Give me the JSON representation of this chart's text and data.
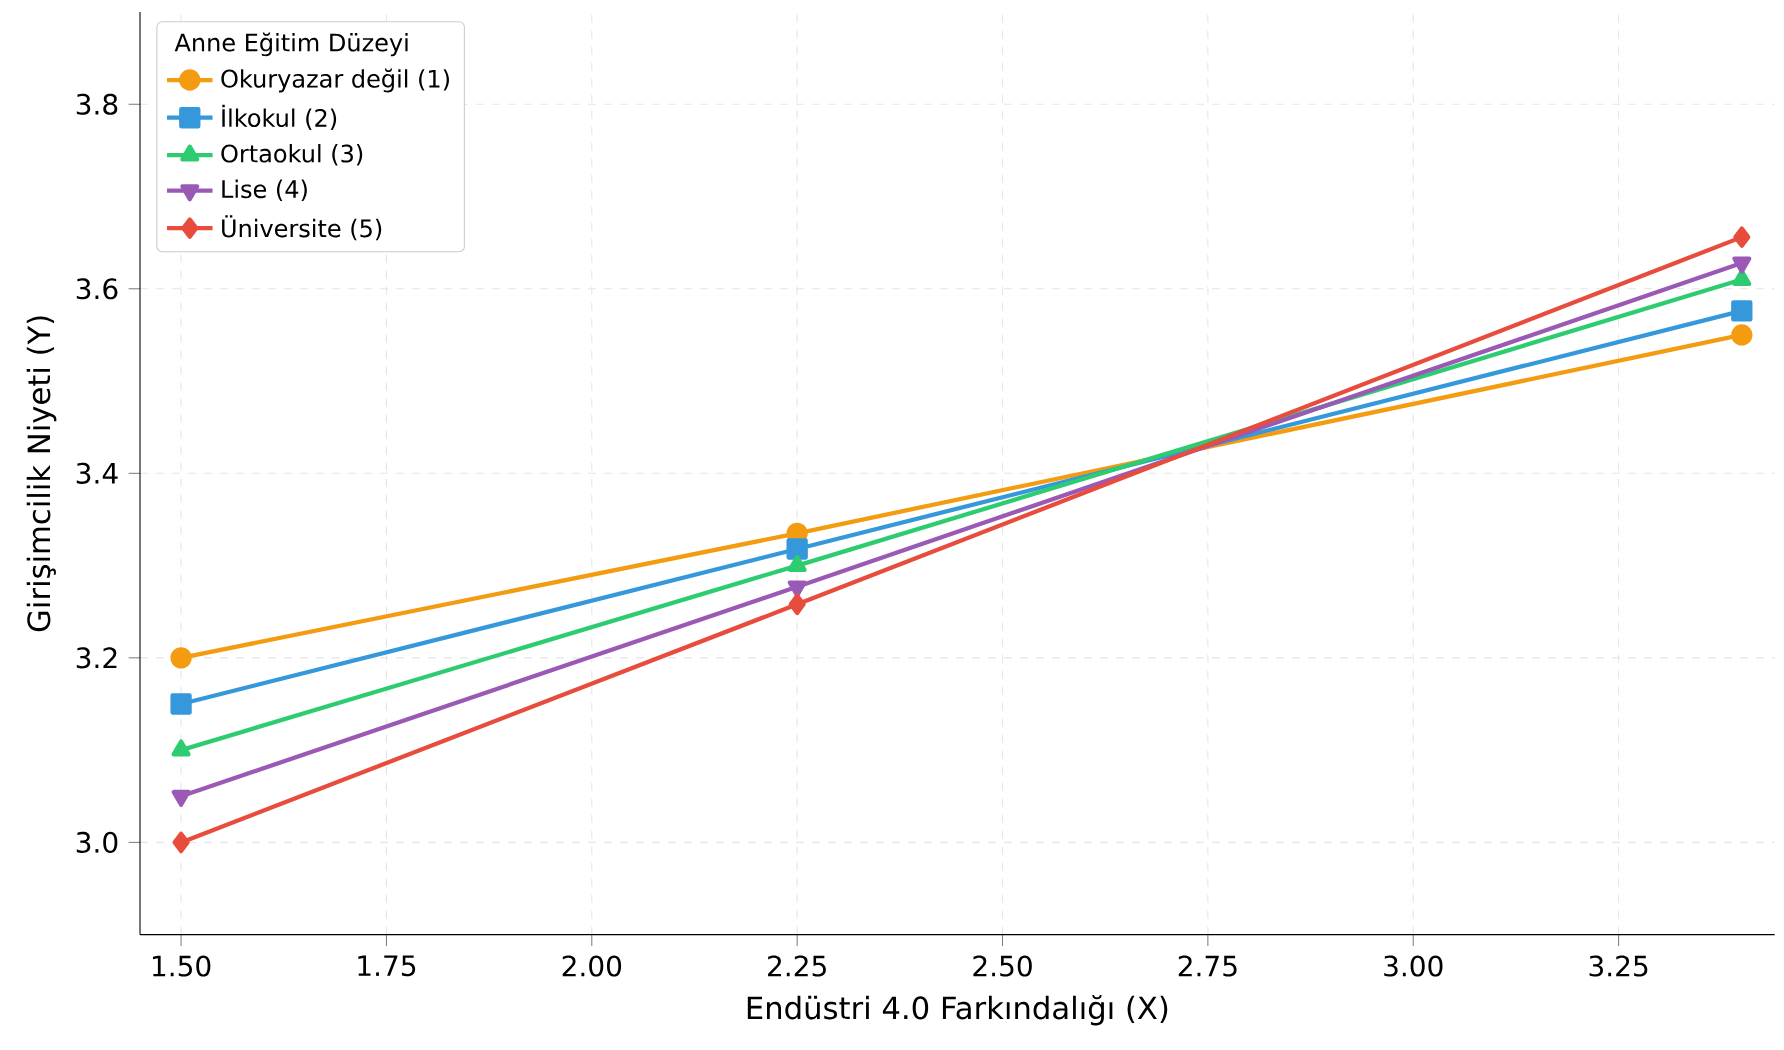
{
  "chart_data": {
    "type": "line",
    "xlabel": "Endüstri 4.0 Farkındalığı (X)",
    "ylabel": "Girişimcilik Niyeti (Y)",
    "legend_title": "Anne Eğitim Düzeyi",
    "x": [
      1.5,
      2.25,
      3.4
    ],
    "series": [
      {
        "name": "Okuryazar değil (1)",
        "color": "#f39c12",
        "marker": "circle",
        "values": [
          3.2,
          3.335,
          3.55
        ]
      },
      {
        "name": "İlkokul (2)",
        "color": "#3498db",
        "marker": "square",
        "values": [
          3.15,
          3.318,
          3.576
        ]
      },
      {
        "name": "Ortaokul (3)",
        "color": "#2ecc71",
        "marker": "triangle",
        "values": [
          3.1,
          3.3,
          3.61
        ]
      },
      {
        "name": "Lise (4)",
        "color": "#9b59b6",
        "marker": "triangle down",
        "values": [
          3.05,
          3.277,
          3.628
        ]
      },
      {
        "name": "Üniversite (5)",
        "color": "#e74c3c",
        "marker": "diamond",
        "values": [
          3.0,
          3.258,
          3.656
        ]
      }
    ],
    "xlim": [
      1.45,
      3.44
    ],
    "ylim": [
      2.9,
      3.9
    ],
    "xticks": [
      {
        "value": 1.5,
        "label": "1.50"
      },
      {
        "value": 1.75,
        "label": "1.75"
      },
      {
        "value": 2.0,
        "label": "2.00"
      },
      {
        "value": 2.25,
        "label": "2.25"
      },
      {
        "value": 2.5,
        "label": "2.50"
      },
      {
        "value": 2.75,
        "label": "2.75"
      },
      {
        "value": 3.0,
        "label": "3.00"
      },
      {
        "value": 3.25,
        "label": "3.25"
      }
    ],
    "yticks": [
      {
        "value": 3.0,
        "label": "3.0"
      },
      {
        "value": 3.2,
        "label": "3.2"
      },
      {
        "value": 3.4,
        "label": "3.4"
      },
      {
        "value": 3.6,
        "label": "3.6"
      },
      {
        "value": 3.8,
        "label": "3.8"
      }
    ],
    "grid": true,
    "legend": "top left",
    "line_style": "solid"
  }
}
